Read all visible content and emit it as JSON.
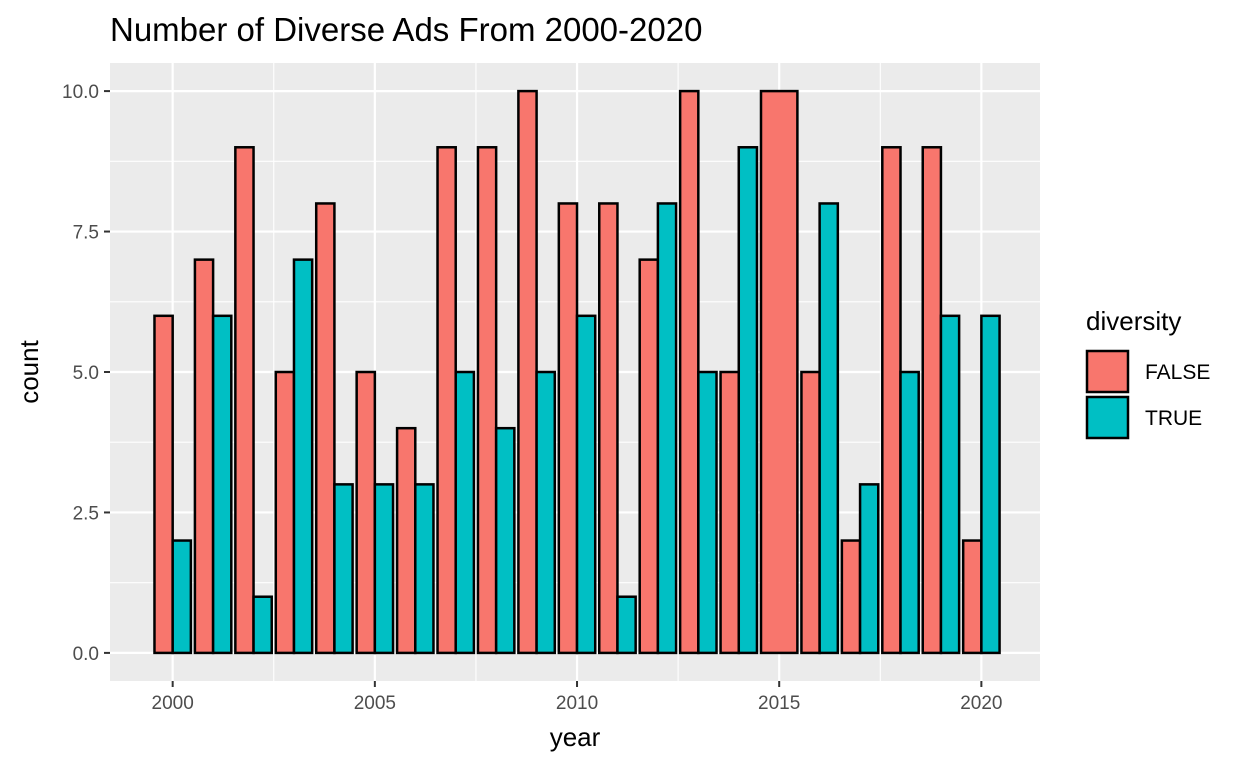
{
  "chart_data": {
    "type": "bar",
    "title": "Number of Diverse Ads From 2000-2020",
    "xlabel": "year",
    "ylabel": "count",
    "xlim": [
      1998.45,
      2021.45
    ],
    "ylim": [
      -0.5,
      10.5
    ],
    "x_ticks": [
      2000,
      2005,
      2010,
      2015,
      2020
    ],
    "y_ticks": [
      0.0,
      2.5,
      5.0,
      7.5,
      10.0
    ],
    "y_tick_labels": [
      "0.0",
      "2.5",
      "5.0",
      "7.5",
      "10.0"
    ],
    "grid": true,
    "legend": {
      "title": "diversity",
      "position": "right",
      "entries": [
        {
          "label": "FALSE",
          "color": "#F8766D"
        },
        {
          "label": "TRUE",
          "color": "#00BFC4"
        }
      ]
    },
    "bar_outline_color": "#000000",
    "bars": [
      {
        "year": 2000,
        "diversity": "FALSE",
        "count": 6
      },
      {
        "year": 2000,
        "diversity": "TRUE",
        "count": 2
      },
      {
        "year": 2001,
        "diversity": "FALSE",
        "count": 7
      },
      {
        "year": 2001,
        "diversity": "TRUE",
        "count": 6
      },
      {
        "year": 2002,
        "diversity": "FALSE",
        "count": 9
      },
      {
        "year": 2002,
        "diversity": "TRUE",
        "count": 1
      },
      {
        "year": 2003,
        "diversity": "FALSE",
        "count": 5
      },
      {
        "year": 2003,
        "diversity": "TRUE",
        "count": 7
      },
      {
        "year": 2004,
        "diversity": "FALSE",
        "count": 8
      },
      {
        "year": 2004,
        "diversity": "TRUE",
        "count": 3
      },
      {
        "year": 2005,
        "diversity": "FALSE",
        "count": 5
      },
      {
        "year": 2005,
        "diversity": "TRUE",
        "count": 3
      },
      {
        "year": 2006,
        "diversity": "FALSE",
        "count": 4
      },
      {
        "year": 2006,
        "diversity": "TRUE",
        "count": 3
      },
      {
        "year": 2007,
        "diversity": "FALSE",
        "count": 9
      },
      {
        "year": 2007,
        "diversity": "TRUE",
        "count": 5
      },
      {
        "year": 2008,
        "diversity": "FALSE",
        "count": 9
      },
      {
        "year": 2008,
        "diversity": "TRUE",
        "count": 4
      },
      {
        "year": 2009,
        "diversity": "FALSE",
        "count": 10
      },
      {
        "year": 2009,
        "diversity": "TRUE",
        "count": 5
      },
      {
        "year": 2010,
        "diversity": "FALSE",
        "count": 8
      },
      {
        "year": 2010,
        "diversity": "TRUE",
        "count": 6
      },
      {
        "year": 2011,
        "diversity": "FALSE",
        "count": 8
      },
      {
        "year": 2011,
        "diversity": "TRUE",
        "count": 1
      },
      {
        "year": 2012,
        "diversity": "FALSE",
        "count": 7
      },
      {
        "year": 2012,
        "diversity": "TRUE",
        "count": 8
      },
      {
        "year": 2013,
        "diversity": "FALSE",
        "count": 10
      },
      {
        "year": 2013,
        "diversity": "TRUE",
        "count": 5
      },
      {
        "year": 2014,
        "diversity": "FALSE",
        "count": 5
      },
      {
        "year": 2014,
        "diversity": "TRUE",
        "count": 9
      },
      {
        "year": 2015,
        "diversity": "FALSE",
        "count": 10
      },
      {
        "year": 2016,
        "diversity": "FALSE",
        "count": 5
      },
      {
        "year": 2016,
        "diversity": "TRUE",
        "count": 8
      },
      {
        "year": 2017,
        "diversity": "FALSE",
        "count": 2
      },
      {
        "year": 2017,
        "diversity": "TRUE",
        "count": 3
      },
      {
        "year": 2018,
        "diversity": "FALSE",
        "count": 9
      },
      {
        "year": 2018,
        "diversity": "TRUE",
        "count": 5
      },
      {
        "year": 2019,
        "diversity": "FALSE",
        "count": 9
      },
      {
        "year": 2019,
        "diversity": "TRUE",
        "count": 6
      },
      {
        "year": 2020,
        "diversity": "FALSE",
        "count": 2
      },
      {
        "year": 2020,
        "diversity": "TRUE",
        "count": 6
      }
    ]
  }
}
